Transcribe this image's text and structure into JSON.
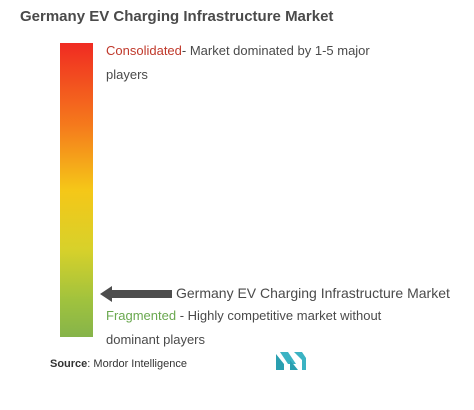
{
  "chart_data": {
    "type": "market-concentration-scale",
    "title": "Germany EV Charging Infrastructure Market",
    "scale": {
      "top": {
        "label": "Consolidated",
        "description": "- Market dominated by 1-5 major players"
      },
      "bottom": {
        "label": "Fragmented",
        "description": "- Highly competitive market without dominant players"
      },
      "gradient_colors": [
        "#f02b22",
        "#f57a1c",
        "#f5c718",
        "#d8d12a",
        "#9fc23e",
        "#86b44a"
      ]
    },
    "marker": {
      "label": "Germany EV Charging Infrastructure Market",
      "position_fraction_from_top": 0.85
    }
  },
  "source": {
    "prefix": "Source",
    "text": ": Mordor Intelligence"
  },
  "colors": {
    "consolidated": "#c0392b",
    "fragmented": "#6aa84f",
    "arrow": "#4d4d4d",
    "logo": "#3bb3c3"
  }
}
